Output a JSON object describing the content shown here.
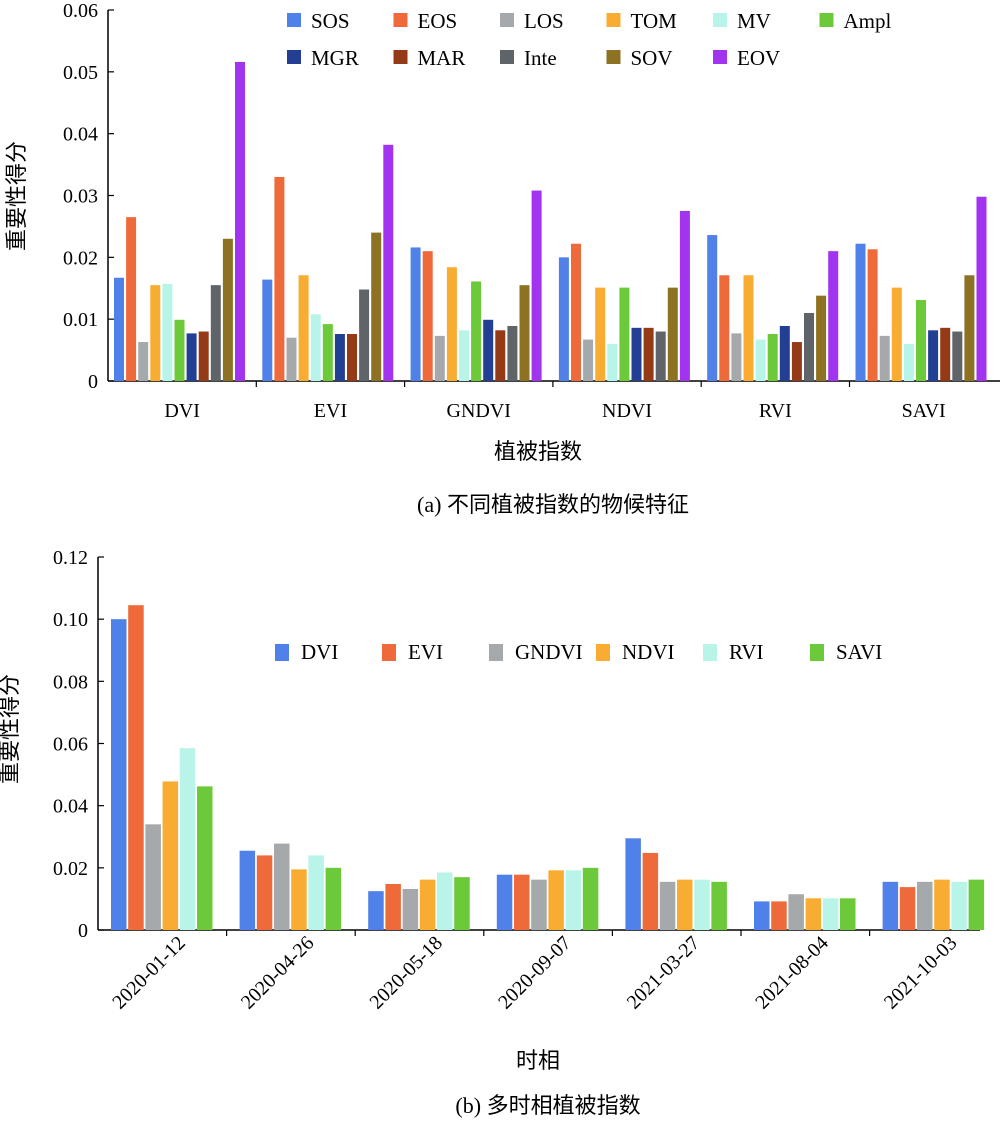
{
  "chart_data": [
    {
      "type": "bar",
      "title": "",
      "caption": "(a) 不同植被指数的物候特征",
      "xlabel": "植被指数",
      "ylabel": "重要性得分",
      "ylim": [
        0,
        0.06
      ],
      "yticks": [
        "0",
        "0.01",
        "0.02",
        "0.03",
        "0.04",
        "0.05",
        "0.06"
      ],
      "grid": false,
      "legend": "top-right",
      "categories": [
        "DVI",
        "EVI",
        "GNDVI",
        "NDVI",
        "RVI",
        "SAVI"
      ],
      "series": [
        {
          "name": "SOS",
          "color": "#4f81e8",
          "values": [
            0.0167,
            0.0164,
            0.0216,
            0.02,
            0.0236,
            0.0222
          ]
        },
        {
          "name": "EOS",
          "color": "#ee6a3a",
          "values": [
            0.0265,
            0.033,
            0.021,
            0.0222,
            0.0171,
            0.0213
          ]
        },
        {
          "name": "LOS",
          "color": "#a6a9ab",
          "values": [
            0.0063,
            0.007,
            0.0073,
            0.0067,
            0.0077,
            0.0073
          ]
        },
        {
          "name": "TOM",
          "color": "#f8ac32",
          "values": [
            0.0155,
            0.0171,
            0.0184,
            0.0151,
            0.0171,
            0.0151
          ]
        },
        {
          "name": "MV",
          "color": "#b8f5e8",
          "values": [
            0.0157,
            0.0108,
            0.0082,
            0.006,
            0.0067,
            0.006
          ]
        },
        {
          "name": "Ampl",
          "color": "#6cc93a",
          "values": [
            0.0099,
            0.0092,
            0.0161,
            0.0151,
            0.0076,
            0.0131
          ]
        },
        {
          "name": "MGR",
          "color": "#233f94",
          "values": [
            0.0077,
            0.0076,
            0.0099,
            0.0086,
            0.0089,
            0.0082
          ]
        },
        {
          "name": "MAR",
          "color": "#953a16",
          "values": [
            0.008,
            0.0076,
            0.0082,
            0.0086,
            0.0063,
            0.0086
          ]
        },
        {
          "name": "Inte",
          "color": "#5f6469",
          "values": [
            0.0155,
            0.0148,
            0.0089,
            0.008,
            0.011,
            0.008
          ]
        },
        {
          "name": "SOV",
          "color": "#8e7224",
          "values": [
            0.023,
            0.024,
            0.0155,
            0.0151,
            0.0138,
            0.0171
          ]
        },
        {
          "name": "EOV",
          "color": "#a233ef",
          "values": [
            0.0516,
            0.0382,
            0.0308,
            0.0275,
            0.021,
            0.0298
          ]
        }
      ]
    },
    {
      "type": "bar",
      "title": "",
      "caption": "(b) 多时相植被指数",
      "xlabel": "时相",
      "ylabel": "重要性得分",
      "ylim": [
        0,
        0.12
      ],
      "yticks": [
        "0",
        "0.02",
        "0.04",
        "0.06",
        "0.08",
        "0.10",
        "0.12"
      ],
      "grid": false,
      "legend": "top-right",
      "categories": [
        "2020-01-12",
        "2020-04-26",
        "2020-05-18",
        "2020-09-07",
        "2021-03-27",
        "2021-08-04",
        "2021-10-03"
      ],
      "series": [
        {
          "name": "DVI",
          "color": "#4f81e8",
          "values": [
            0.1,
            0.0255,
            0.0125,
            0.0178,
            0.0295,
            0.0092,
            0.0155
          ]
        },
        {
          "name": "EVI",
          "color": "#ee6a3a",
          "values": [
            0.1045,
            0.024,
            0.0148,
            0.0178,
            0.0248,
            0.0092,
            0.0138
          ]
        },
        {
          "name": "GNDVI",
          "color": "#a6a9ab",
          "values": [
            0.034,
            0.0278,
            0.0132,
            0.0162,
            0.0155,
            0.0115,
            0.0155
          ]
        },
        {
          "name": "NDVI",
          "color": "#f8ac32",
          "values": [
            0.0478,
            0.0195,
            0.0162,
            0.0192,
            0.0162,
            0.0102,
            0.0162
          ]
        },
        {
          "name": "RVI",
          "color": "#b8f5e8",
          "values": [
            0.0585,
            0.024,
            0.0185,
            0.0192,
            0.0162,
            0.0102,
            0.0155
          ]
        },
        {
          "name": "SAVI",
          "color": "#6cc93a",
          "values": [
            0.0462,
            0.02,
            0.017,
            0.02,
            0.0155,
            0.0102,
            0.0162
          ]
        }
      ]
    }
  ]
}
